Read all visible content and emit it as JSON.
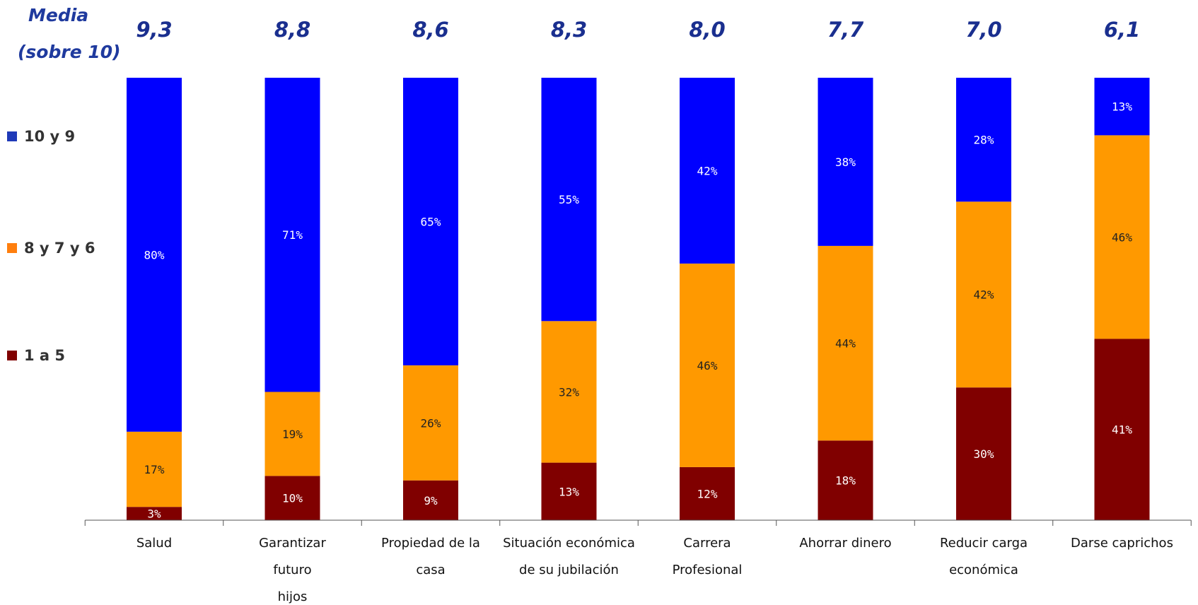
{
  "chart_data": {
    "type": "bar",
    "stacked": true,
    "normalized_percent": true,
    "header": {
      "line1": "Media",
      "line2": "(sobre 10)"
    },
    "categories": [
      [
        "Salud"
      ],
      [
        "Garantizar",
        "futuro",
        "hijos"
      ],
      [
        "Propiedad de la",
        "casa"
      ],
      [
        "Situación económica",
        "de su jubilación"
      ],
      [
        "Carrera",
        "Profesional"
      ],
      [
        "Ahorrar dinero"
      ],
      [
        "Reducir carga",
        "económica"
      ],
      [
        "Darse caprichos"
      ]
    ],
    "means": [
      "9,3",
      "8,8",
      "8,6",
      "8,3",
      "8,0",
      "7,7",
      "7,0",
      "6,1"
    ],
    "series": [
      {
        "name": "1 a 5",
        "color": "#800000",
        "label_color": "#ffffff",
        "values": [
          3,
          10,
          9,
          13,
          12,
          18,
          30,
          41
        ]
      },
      {
        "name": "8 y 7 y 6",
        "color": "#ff9900",
        "label_color": "#222222",
        "values": [
          17,
          19,
          26,
          32,
          46,
          44,
          42,
          46
        ]
      },
      {
        "name": "10 y 9",
        "color": "#0000ff",
        "label_color": "#ffffff",
        "values": [
          80,
          71,
          65,
          55,
          42,
          38,
          28,
          13
        ]
      }
    ],
    "legend": {
      "placement": "left",
      "order": [
        "10 y 9",
        "8 y 7 y 6",
        "1 a 5"
      ],
      "colors": {
        "10 y 9": "#1f3ab8",
        "8 y 7 y 6": "#ff7f0e",
        "1 a 5": "#800000"
      }
    },
    "value_suffix": "%",
    "ylim": [
      0,
      100
    ],
    "grid": false
  }
}
